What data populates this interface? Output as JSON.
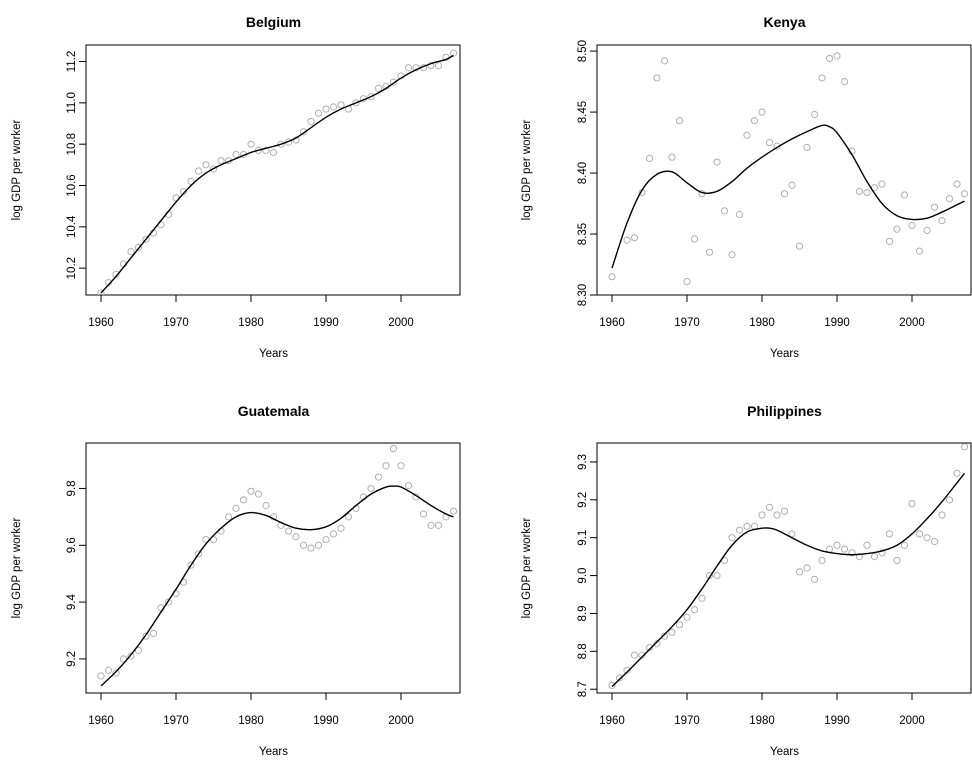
{
  "chart_data": [
    {
      "type": "scatter",
      "title": "Belgium",
      "xlabel": "Years",
      "ylabel": "log GDP per worker",
      "xlim": [
        1958,
        2008
      ],
      "ylim": [
        10.07,
        11.28
      ],
      "xticks": [
        1960,
        1970,
        1980,
        1990,
        2000
      ],
      "yticks": [
        10.2,
        10.4,
        10.6,
        10.8,
        11.0,
        11.2
      ],
      "ytick_labels": [
        "10.2",
        "10.4",
        "10.6",
        "10.8",
        "11.0",
        "11.2"
      ],
      "grid": false,
      "series": [
        {
          "kind": "points",
          "color": "#b0b0b0",
          "x": [
            1960,
            1961,
            1962,
            1963,
            1964,
            1965,
            1966,
            1967,
            1968,
            1969,
            1970,
            1971,
            1972,
            1973,
            1974,
            1975,
            1976,
            1977,
            1978,
            1979,
            1980,
            1981,
            1982,
            1983,
            1984,
            1985,
            1986,
            1987,
            1988,
            1989,
            1990,
            1991,
            1992,
            1993,
            1994,
            1995,
            1996,
            1997,
            1998,
            1999,
            2000,
            2001,
            2002,
            2003,
            2004,
            2005,
            2006,
            2007
          ],
          "y": [
            10.08,
            10.13,
            10.17,
            10.22,
            10.28,
            10.3,
            10.34,
            10.37,
            10.41,
            10.46,
            10.54,
            10.57,
            10.62,
            10.67,
            10.7,
            10.68,
            10.72,
            10.72,
            10.75,
            10.75,
            10.8,
            10.77,
            10.77,
            10.76,
            10.8,
            10.81,
            10.82,
            10.86,
            10.91,
            10.95,
            10.97,
            10.98,
            10.99,
            10.97,
            11.0,
            11.02,
            11.03,
            11.07,
            11.08,
            11.1,
            11.13,
            11.17,
            11.17,
            11.17,
            11.18,
            11.18,
            11.22,
            11.24
          ]
        },
        {
          "kind": "line",
          "color": "#000000",
          "x": [
            1960,
            1962,
            1964,
            1966,
            1968,
            1970,
            1972,
            1974,
            1976,
            1978,
            1980,
            1982,
            1984,
            1986,
            1988,
            1990,
            1992,
            1994,
            1996,
            1998,
            2000,
            2002,
            2004,
            2006,
            2007
          ],
          "y": [
            10.08,
            10.16,
            10.25,
            10.34,
            10.43,
            10.52,
            10.6,
            10.66,
            10.7,
            10.73,
            10.76,
            10.78,
            10.8,
            10.83,
            10.88,
            10.93,
            10.97,
            11.0,
            11.03,
            11.07,
            11.12,
            11.16,
            11.19,
            11.21,
            11.23
          ]
        }
      ]
    },
    {
      "type": "scatter",
      "title": "Kenya",
      "xlabel": "Years",
      "ylabel": "log GDP per worker",
      "xlim": [
        1958,
        2008
      ],
      "ylim": [
        8.3,
        8.505
      ],
      "xticks": [
        1960,
        1970,
        1980,
        1990,
        2000
      ],
      "yticks": [
        8.3,
        8.35,
        8.4,
        8.45,
        8.5
      ],
      "ytick_labels": [
        "8.30",
        "8.35",
        "8.40",
        "8.45",
        "8.50"
      ],
      "grid": false,
      "series": [
        {
          "kind": "points",
          "color": "#b0b0b0",
          "x": [
            1960,
            1962,
            1963,
            1964,
            1965,
            1966,
            1967,
            1968,
            1969,
            1970,
            1971,
            1972,
            1973,
            1974,
            1975,
            1976,
            1977,
            1978,
            1979,
            1980,
            1981,
            1982,
            1983,
            1984,
            1985,
            1986,
            1987,
            1988,
            1989,
            1990,
            1991,
            1992,
            1993,
            1994,
            1995,
            1996,
            1997,
            1998,
            1999,
            2000,
            2001,
            2002,
            2003,
            2004,
            2005,
            2006,
            2007
          ],
          "y": [
            8.315,
            8.345,
            8.347,
            8.384,
            8.412,
            8.478,
            8.492,
            8.413,
            8.443,
            8.311,
            8.346,
            8.383,
            8.335,
            8.409,
            8.369,
            8.333,
            8.366,
            8.431,
            8.443,
            8.45,
            8.425,
            8.422,
            8.383,
            8.39,
            8.34,
            8.421,
            8.448,
            8.478,
            8.494,
            8.496,
            8.475,
            8.418,
            8.385,
            8.384,
            8.388,
            8.391,
            8.344,
            8.354,
            8.382,
            8.357,
            8.336,
            8.353,
            8.372,
            8.361,
            8.379,
            8.391,
            8.383
          ]
        },
        {
          "kind": "line",
          "color": "#000000",
          "x": [
            1960,
            1962,
            1964,
            1966,
            1968,
            1970,
            1972,
            1974,
            1976,
            1978,
            1980,
            1982,
            1984,
            1986,
            1988,
            1989,
            1990,
            1992,
            1994,
            1996,
            1998,
            2000,
            2002,
            2004,
            2006,
            2007
          ],
          "y": [
            8.322,
            8.359,
            8.386,
            8.399,
            8.401,
            8.392,
            8.384,
            8.385,
            8.393,
            8.404,
            8.413,
            8.421,
            8.428,
            8.434,
            8.439,
            8.438,
            8.433,
            8.415,
            8.393,
            8.375,
            8.365,
            8.362,
            8.363,
            8.368,
            8.374,
            8.377
          ]
        }
      ]
    },
    {
      "type": "scatter",
      "title": "Guatemala",
      "xlabel": "Years",
      "ylabel": "log GDP per worker",
      "xlim": [
        1958,
        2008
      ],
      "ylim": [
        9.08,
        9.96
      ],
      "xticks": [
        1960,
        1970,
        1980,
        1990,
        2000
      ],
      "yticks": [
        9.2,
        9.4,
        9.6,
        9.8
      ],
      "ytick_labels": [
        "9.2",
        "9.4",
        "9.6",
        "9.8"
      ],
      "grid": false,
      "series": [
        {
          "kind": "points",
          "color": "#b0b0b0",
          "x": [
            1960,
            1961,
            1962,
            1963,
            1964,
            1965,
            1966,
            1967,
            1968,
            1969,
            1970,
            1971,
            1972,
            1973,
            1974,
            1975,
            1976,
            1977,
            1978,
            1979,
            1980,
            1981,
            1982,
            1983,
            1984,
            1985,
            1986,
            1987,
            1988,
            1989,
            1990,
            1991,
            1992,
            1993,
            1994,
            1995,
            1996,
            1997,
            1998,
            1999,
            2000,
            2001,
            2002,
            2003,
            2004,
            2005,
            2006,
            2007
          ],
          "y": [
            9.14,
            9.16,
            9.15,
            9.2,
            9.21,
            9.23,
            9.28,
            9.29,
            9.38,
            9.4,
            9.43,
            9.47,
            9.53,
            9.57,
            9.62,
            9.62,
            9.65,
            9.7,
            9.73,
            9.76,
            9.79,
            9.78,
            9.74,
            9.7,
            9.67,
            9.65,
            9.63,
            9.6,
            9.59,
            9.6,
            9.62,
            9.64,
            9.66,
            9.7,
            9.73,
            9.77,
            9.8,
            9.84,
            9.88,
            9.94,
            9.88,
            9.81,
            9.77,
            9.71,
            9.67,
            9.67,
            9.7,
            9.72
          ]
        },
        {
          "kind": "line",
          "color": "#000000",
          "x": [
            1960,
            1962,
            1964,
            1966,
            1968,
            1970,
            1972,
            1974,
            1976,
            1978,
            1980,
            1982,
            1984,
            1986,
            1988,
            1990,
            1992,
            1994,
            1996,
            1998,
            1999,
            2000,
            2002,
            2004,
            2006,
            2007
          ],
          "y": [
            9.105,
            9.155,
            9.215,
            9.285,
            9.365,
            9.445,
            9.53,
            9.605,
            9.66,
            9.7,
            9.715,
            9.705,
            9.68,
            9.66,
            9.655,
            9.665,
            9.695,
            9.74,
            9.78,
            9.805,
            9.808,
            9.805,
            9.775,
            9.74,
            9.71,
            9.7
          ]
        }
      ]
    },
    {
      "type": "scatter",
      "title": "Philippines",
      "xlabel": "Years",
      "ylabel": "log GDP per worker",
      "xlim": [
        1958,
        2008
      ],
      "ylim": [
        8.69,
        9.35
      ],
      "xticks": [
        1960,
        1970,
        1980,
        1990,
        2000
      ],
      "yticks": [
        8.7,
        8.8,
        8.9,
        9.0,
        9.1,
        9.2,
        9.3
      ],
      "ytick_labels": [
        "8.7",
        "8.8",
        "8.9",
        "9.0",
        "9.1",
        "9.2",
        "9.3"
      ],
      "grid": false,
      "series": [
        {
          "kind": "points",
          "color": "#b0b0b0",
          "x": [
            1960,
            1961,
            1962,
            1963,
            1964,
            1965,
            1966,
            1967,
            1968,
            1969,
            1970,
            1971,
            1972,
            1973,
            1974,
            1975,
            1976,
            1977,
            1978,
            1979,
            1980,
            1981,
            1982,
            1983,
            1984,
            1985,
            1986,
            1987,
            1988,
            1989,
            1990,
            1991,
            1992,
            1993,
            1994,
            1995,
            1996,
            1997,
            1998,
            1999,
            2000,
            2001,
            2002,
            2003,
            2004,
            2005,
            2006,
            2007
          ],
          "y": [
            8.71,
            8.73,
            8.75,
            8.79,
            8.79,
            8.81,
            8.82,
            8.84,
            8.85,
            8.87,
            8.89,
            8.91,
            8.94,
            9.0,
            9.0,
            9.04,
            9.1,
            9.12,
            9.13,
            9.13,
            9.16,
            9.18,
            9.16,
            9.17,
            9.11,
            9.01,
            9.02,
            8.99,
            9.04,
            9.07,
            9.08,
            9.07,
            9.06,
            9.05,
            9.08,
            9.05,
            9.06,
            9.11,
            9.04,
            9.08,
            9.19,
            9.11,
            9.1,
            9.09,
            9.16,
            9.2,
            9.27,
            9.34
          ]
        },
        {
          "kind": "line",
          "color": "#000000",
          "x": [
            1960,
            1962,
            1964,
            1966,
            1968,
            1970,
            1972,
            1974,
            1976,
            1978,
            1980,
            1981,
            1982,
            1984,
            1986,
            1988,
            1990,
            1992,
            1994,
            1996,
            1998,
            2000,
            2002,
            2004,
            2006,
            2007
          ],
          "y": [
            8.707,
            8.745,
            8.785,
            8.825,
            8.865,
            8.91,
            8.965,
            9.025,
            9.08,
            9.115,
            9.125,
            9.125,
            9.12,
            9.1,
            9.08,
            9.065,
            9.058,
            9.055,
            9.058,
            9.065,
            9.08,
            9.11,
            9.15,
            9.195,
            9.245,
            9.27
          ]
        }
      ]
    }
  ]
}
